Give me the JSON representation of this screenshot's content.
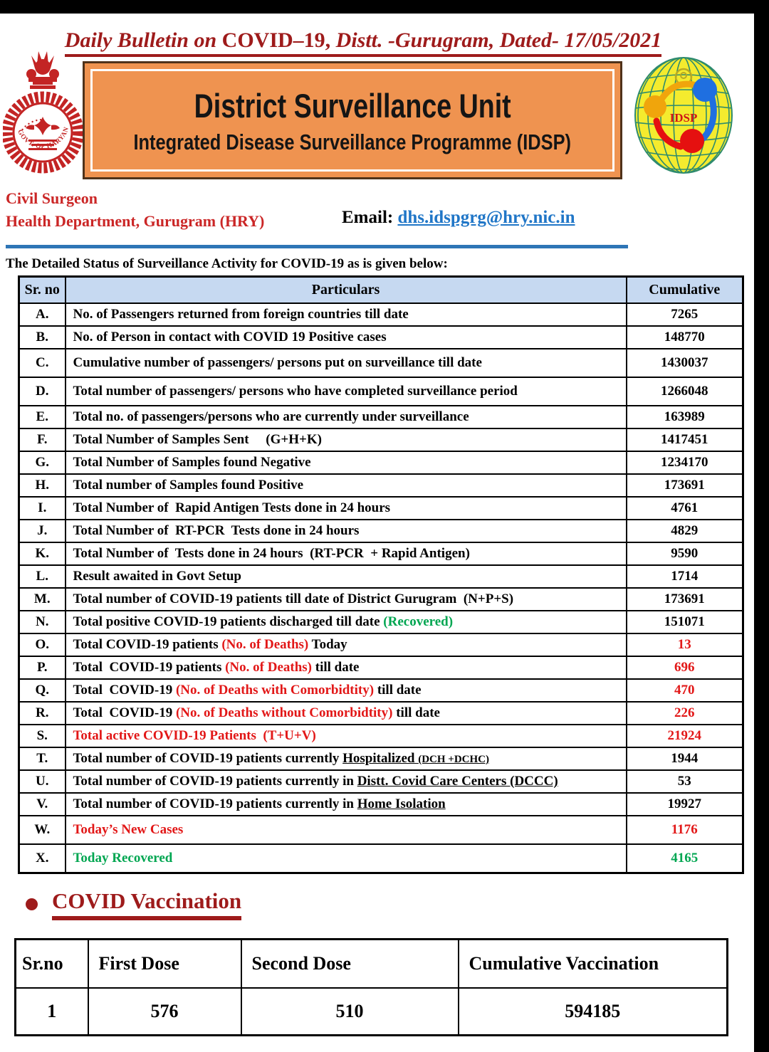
{
  "title": {
    "part1": "Daily Bulletin on ",
    "part2": "COVID–19,",
    "part3": " Distt. -Gurugram, Dated- 17/05/2021"
  },
  "banner": {
    "line1": "District Surveillance Unit",
    "line2": "Integrated Disease Surveillance Programme (IDSP)"
  },
  "logos": {
    "left": "Govt. of Haryana emblem",
    "left_text": "GOVT. OF HARYANA",
    "right": "IDSP globe logo",
    "right_text": "IDSP"
  },
  "contact": {
    "line1": "Civil Surgeon",
    "line2": "Health Department, Gurugram (HRY)",
    "email_label": "Email:",
    "email_address": "dhs.idspgrg@hry.nic.in"
  },
  "intro": "The Detailed Status of Surveillance Activity for COVID-19 as is given below:",
  "surveillance_table": {
    "headers": [
      "Sr. no",
      "Particulars",
      "Cumulative"
    ],
    "rows": [
      {
        "sr": "A.",
        "segments": [
          {
            "t": "No. of Passengers returned from foreign countries till date"
          }
        ],
        "value": "7265",
        "value_color": "black"
      },
      {
        "sr": "B.",
        "segments": [
          {
            "t": "No. of Person in contact with COVID 19 Positive cases"
          }
        ],
        "value": "148770",
        "value_color": "black"
      },
      {
        "sr": "C.",
        "segments": [
          {
            "t": "Cumulative number of passengers/ persons put on surveillance till date"
          }
        ],
        "value": "1430037",
        "value_color": "black",
        "tall": true
      },
      {
        "sr": "D.",
        "segments": [
          {
            "t": "Total number of passengers/ persons who have completed surveillance period"
          }
        ],
        "value": "1266048",
        "value_color": "black",
        "tall": true
      },
      {
        "sr": "E.",
        "segments": [
          {
            "t": "Total no. of passengers/persons who are currently under surveillance"
          }
        ],
        "value": "163989",
        "value_color": "black"
      },
      {
        "sr": "F.",
        "segments": [
          {
            "t": "Total Number of Samples Sent     (G+H+K)"
          }
        ],
        "value": "1417451",
        "value_color": "black"
      },
      {
        "sr": "G.",
        "segments": [
          {
            "t": "Total Number of Samples found Negative"
          }
        ],
        "value": "1234170",
        "value_color": "black"
      },
      {
        "sr": "H.",
        "segments": [
          {
            "t": "Total number of Samples found Positive"
          }
        ],
        "value": "173691",
        "value_color": "black"
      },
      {
        "sr": "I.",
        "segments": [
          {
            "t": "Total Number of  Rapid Antigen Tests done in 24 hours"
          }
        ],
        "value": "4761",
        "value_color": "black"
      },
      {
        "sr": "J.",
        "segments": [
          {
            "t": "Total Number of  RT-PCR  Tests done in 24 hours"
          }
        ],
        "value": "4829",
        "value_color": "black"
      },
      {
        "sr": "K.",
        "segments": [
          {
            "t": "Total Number of  Tests done in 24 hours  (RT-PCR  + Rapid Antigen)"
          }
        ],
        "value": "9590",
        "value_color": "black"
      },
      {
        "sr": "L.",
        "segments": [
          {
            "t": "Result awaited in Govt Setup"
          }
        ],
        "value": "1714",
        "value_color": "black"
      },
      {
        "sr": "M.",
        "segments": [
          {
            "t": "Total number of COVID-19 patients till date of District Gurugram  (N+P+S)"
          }
        ],
        "value": "173691",
        "value_color": "black"
      },
      {
        "sr": "N.",
        "segments": [
          {
            "t": "Total positive COVID-19 patients discharged till date "
          },
          {
            "t": "(Recovered)",
            "c": "green"
          }
        ],
        "value": "151071",
        "value_color": "black"
      },
      {
        "sr": "O.",
        "segments": [
          {
            "t": "Total COVID-19 patients "
          },
          {
            "t": "(No. of Deaths)",
            "c": "red"
          },
          {
            "t": " Today"
          }
        ],
        "value": "13",
        "value_color": "red"
      },
      {
        "sr": "P.",
        "segments": [
          {
            "t": "Total  COVID-19 patients "
          },
          {
            "t": "(No. of Deaths)",
            "c": "red"
          },
          {
            "t": " till date"
          }
        ],
        "value": "696",
        "value_color": "red"
      },
      {
        "sr": "Q.",
        "segments": [
          {
            "t": "Total  COVID-19 "
          },
          {
            "t": "(No. of Deaths with Comorbidtity)",
            "c": "red"
          },
          {
            "t": " till date"
          }
        ],
        "value": "470",
        "value_color": "red"
      },
      {
        "sr": "R.",
        "segments": [
          {
            "t": "Total  COVID-19 "
          },
          {
            "t": "(No. of Deaths without Comorbidtity)",
            "c": "red"
          },
          {
            "t": " till date"
          }
        ],
        "value": "226",
        "value_color": "red"
      },
      {
        "sr": "S.",
        "segments": [
          {
            "t": "Total active COVID-19 Patients  (T+U+V)",
            "c": "red"
          }
        ],
        "value": "21924",
        "value_color": "red"
      },
      {
        "sr": "T.",
        "segments": [
          {
            "t": "Total number of COVID-19 patients currently "
          },
          {
            "t": "Hospitalized ",
            "u": true
          },
          {
            "t": "(DCH +DCHC)",
            "u": true,
            "s": true
          }
        ],
        "value": "1944",
        "value_color": "black"
      },
      {
        "sr": "U.",
        "segments": [
          {
            "t": "Total number of COVID-19 patients currently in "
          },
          {
            "t": "Distt. Covid Care Centers (DCCC)",
            "u": true
          }
        ],
        "value": "53",
        "value_color": "black"
      },
      {
        "sr": "V.",
        "segments": [
          {
            "t": "Total number of COVID-19 patients currently in "
          },
          {
            "t": "Home Isolation",
            "u": true
          }
        ],
        "value": "19927",
        "value_color": "black"
      },
      {
        "sr": "W.",
        "segments": [
          {
            "t": "Today’s New Cases",
            "c": "red"
          }
        ],
        "value": "1176",
        "value_color": "red",
        "tall": true
      },
      {
        "sr": "X.",
        "segments": [
          {
            "t": "Today Recovered",
            "c": "green"
          }
        ],
        "value": "4165",
        "value_color": "green",
        "tall": true
      }
    ]
  },
  "vaccination": {
    "heading": "COVID Vaccination",
    "headers": [
      "Sr.no",
      "First Dose",
      "Second Dose",
      "Cumulative Vaccination"
    ],
    "rows": [
      [
        "1",
        "576",
        "510",
        "594185"
      ]
    ]
  },
  "colors": {
    "title_red": "#9e1b1b",
    "contact_red": "#cb2626",
    "value_red": "#e21717",
    "green": "#00a651",
    "link_blue": "#2076c7",
    "divider_blue": "#2e75b6",
    "table_header_bg": "#c6d9f1",
    "banner_orange": "#ef9350"
  }
}
